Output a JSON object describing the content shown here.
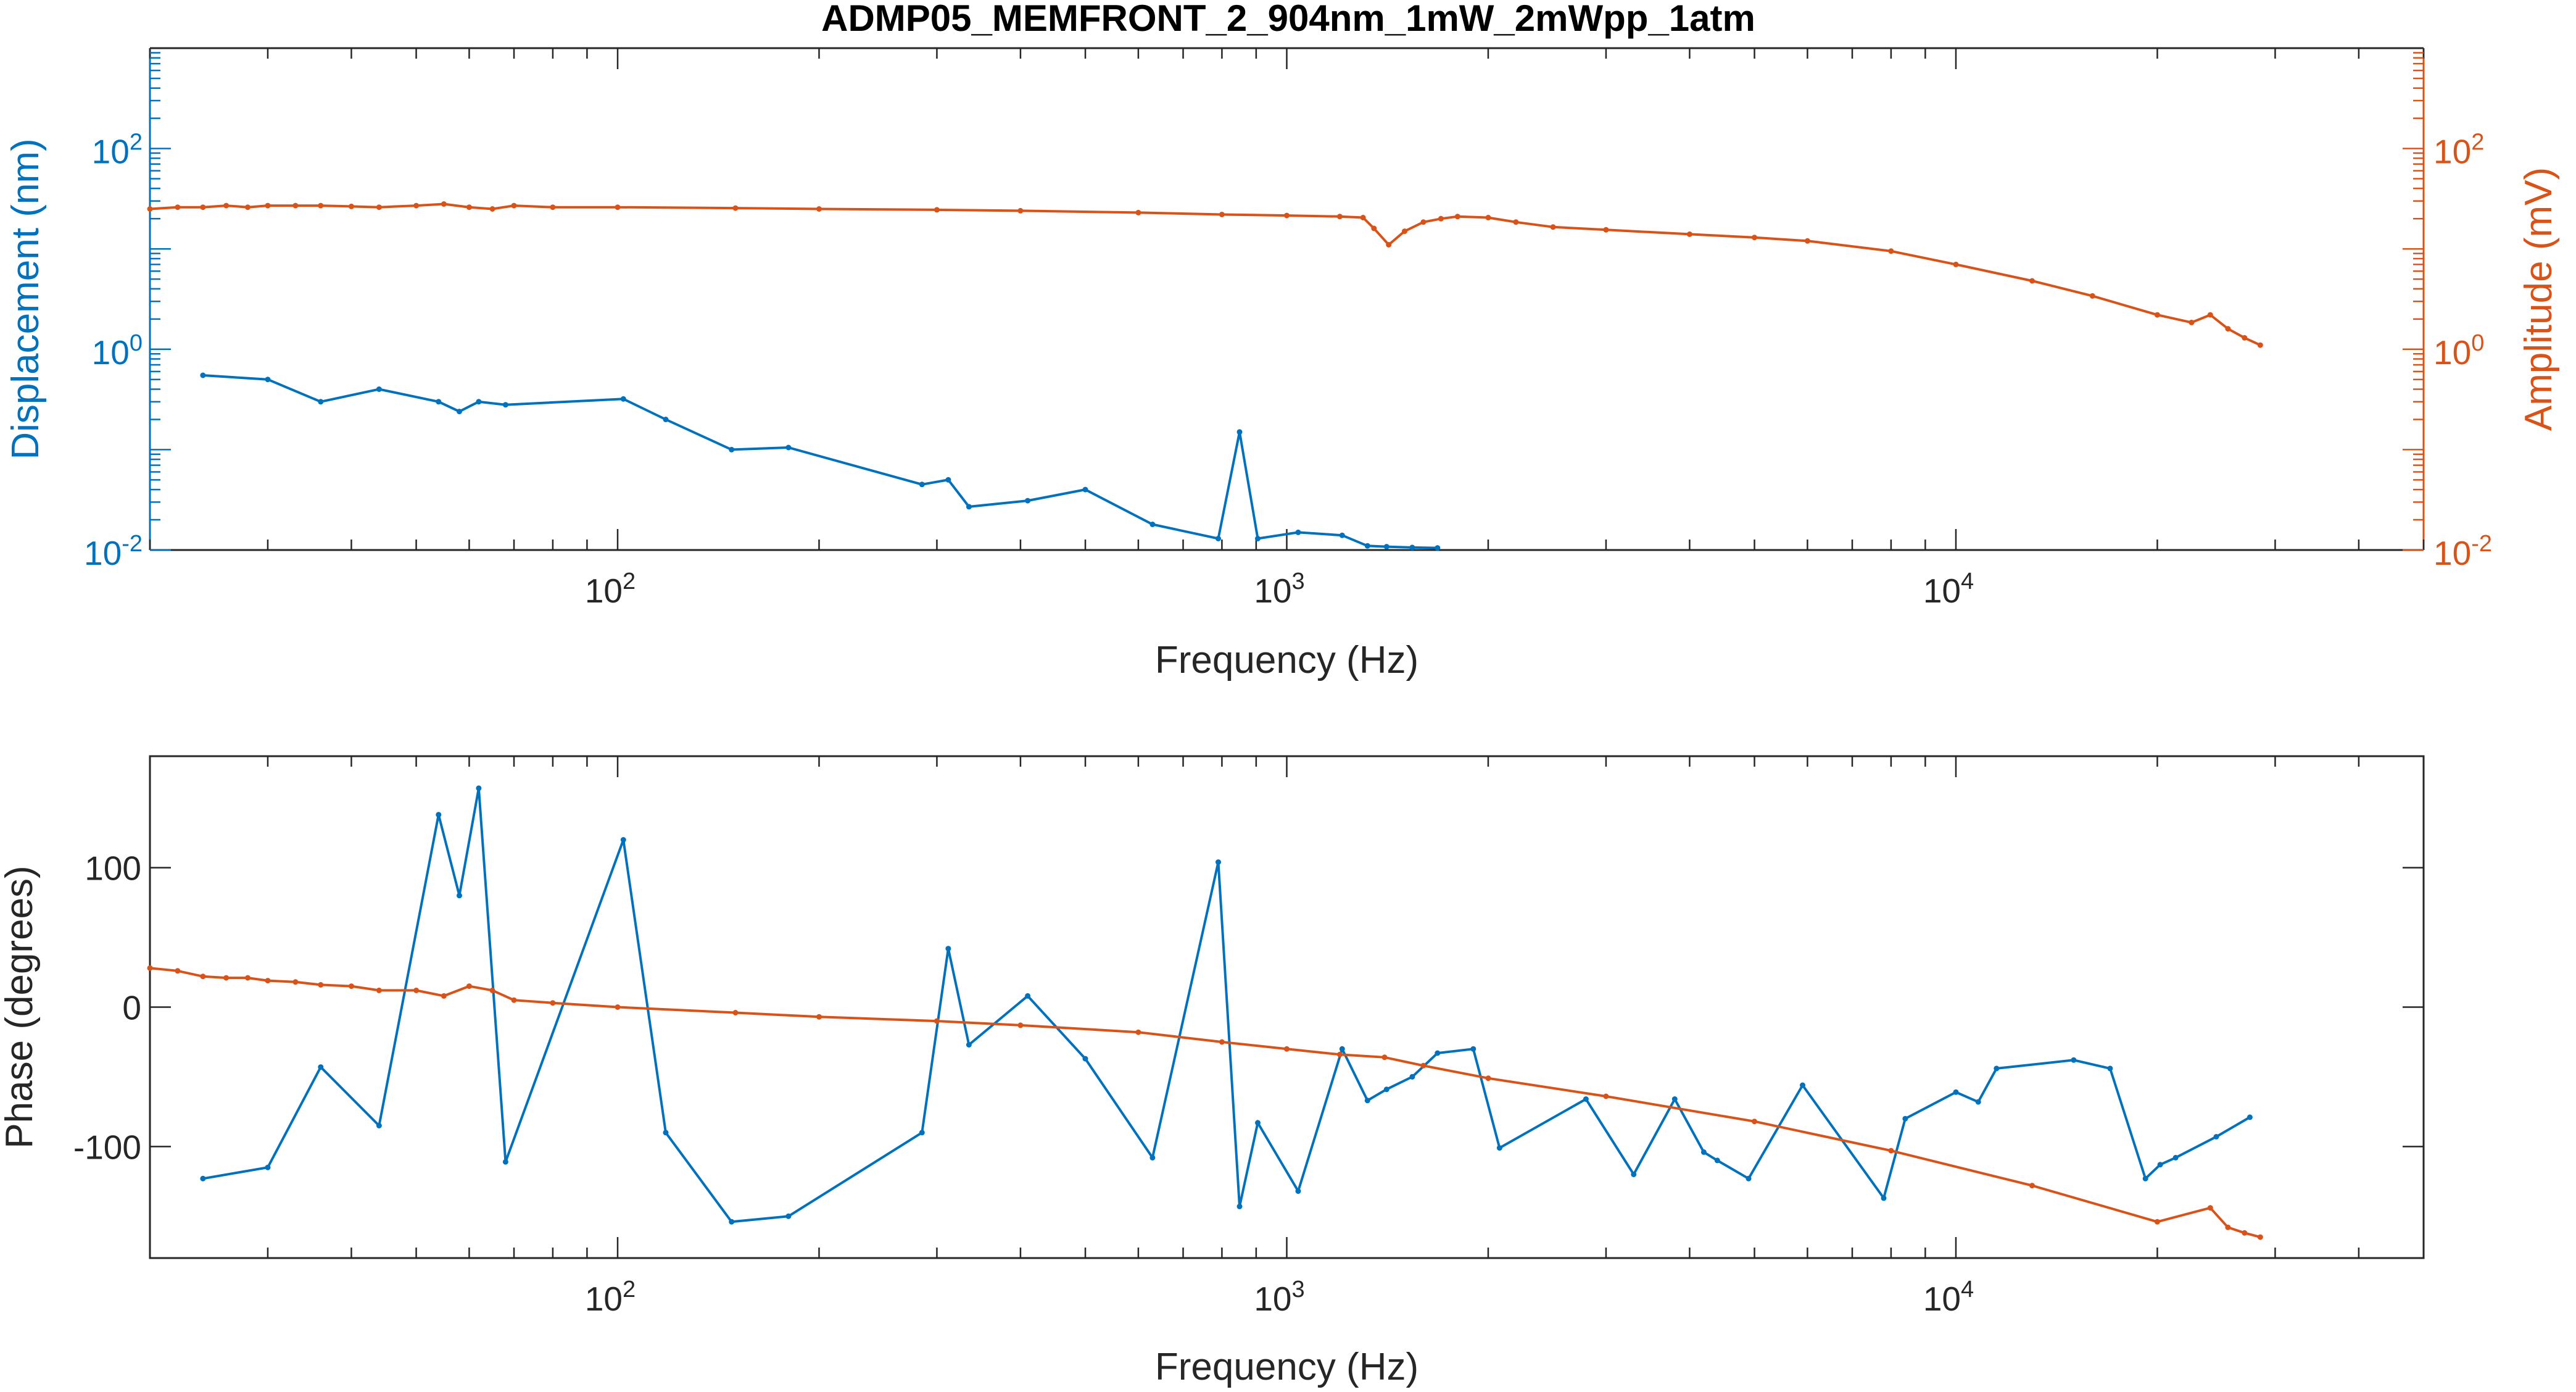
{
  "title": "ADMP05_MEMFRONT_2_904nm_1mW_2mWpp_1atm",
  "colors": {
    "blue": "#0072BD",
    "orange": "#D95319",
    "axis": "#262626",
    "grid": "#262626"
  },
  "chart_data": [
    {
      "type": "line",
      "title": "ADMP05_MEMFRONT_2_904nm_1mW_2mWpp_1atm",
      "xlabel": "Frequency (Hz)",
      "xscale": "log",
      "xlim": [
        20,
        50000
      ],
      "xticks": [
        {
          "base": "10",
          "exp": "2"
        },
        {
          "base": "10",
          "exp": "3"
        },
        {
          "base": "10",
          "exp": "4"
        }
      ],
      "y_left": {
        "label": "Displacement (nm)",
        "scale": "log",
        "lim": [
          0.01,
          1000
        ],
        "ticks": [
          {
            "base": "10",
            "exp": "-2"
          },
          {
            "base": "10",
            "exp": "0"
          },
          {
            "base": "10",
            "exp": "2"
          }
        ]
      },
      "y_right": {
        "label": "Amplitude (mV)",
        "scale": "log",
        "lim": [
          0.01,
          1000
        ],
        "ticks": [
          {
            "base": "10",
            "exp": "-2"
          },
          {
            "base": "10",
            "exp": "0"
          },
          {
            "base": "10",
            "exp": "2"
          }
        ]
      },
      "grid": false,
      "series": [
        {
          "axis": "left",
          "color": "#0072BD",
          "x": [
            24,
            30,
            36,
            44,
            54,
            58,
            62,
            68,
            102,
            118,
            148,
            180,
            285,
            312,
            335,
            410,
            500,
            630,
            790,
            850,
            905,
            1040,
            1210,
            1320,
            1410,
            1540,
            1680
          ],
          "y": [
            0.55,
            0.5,
            0.3,
            0.4,
            0.3,
            0.24,
            0.3,
            0.28,
            0.32,
            0.2,
            0.1,
            0.105,
            0.045,
            0.05,
            0.027,
            0.031,
            0.04,
            0.018,
            0.013,
            0.15,
            0.013,
            0.015,
            0.014,
            0.011,
            0.0108,
            0.0106,
            0.0105
          ]
        },
        {
          "axis": "right",
          "color": "#D95319",
          "x": [
            20,
            22,
            24,
            26,
            28,
            30,
            33,
            36,
            40,
            44,
            50,
            55,
            60,
            65,
            70,
            80,
            100,
            150,
            200,
            300,
            400,
            600,
            800,
            1000,
            1200,
            1300,
            1350,
            1420,
            1500,
            1600,
            1700,
            1800,
            2000,
            2200,
            2500,
            3000,
            4000,
            5000,
            6000,
            8000,
            10000,
            13000,
            16000,
            20000,
            22500,
            24000,
            25500,
            27000,
            28500
          ],
          "y": [
            25,
            26,
            26,
            27,
            26,
            27,
            27,
            27,
            26.5,
            26,
            27,
            28,
            26,
            25,
            27,
            26,
            26,
            25.5,
            25,
            24.5,
            24,
            23,
            22,
            21.5,
            21,
            20.5,
            16,
            11,
            15,
            18.5,
            20,
            21,
            20.5,
            18.5,
            16.5,
            15.5,
            14,
            13,
            12,
            9.5,
            7,
            4.8,
            3.4,
            2.2,
            1.85,
            2.2,
            1.6,
            1.3,
            1.1
          ]
        }
      ]
    },
    {
      "type": "line",
      "xlabel": "Frequency (Hz)",
      "ylabel": "Phase (degrees)",
      "xscale": "log",
      "xlim": [
        20,
        50000
      ],
      "ylim": [
        -180,
        180
      ],
      "xticks": [
        {
          "base": "10",
          "exp": "2"
        },
        {
          "base": "10",
          "exp": "3"
        },
        {
          "base": "10",
          "exp": "4"
        }
      ],
      "yticks": [
        "100",
        "0",
        "-100"
      ],
      "grid": false,
      "series": [
        {
          "color": "#0072BD",
          "x": [
            24,
            30,
            36,
            44,
            54,
            58,
            62,
            68,
            102,
            118,
            148,
            180,
            285,
            312,
            335,
            410,
            500,
            630,
            790,
            850,
            905,
            1040,
            1210,
            1320,
            1410,
            1540,
            1680,
            1900,
            2080,
            2800,
            3300,
            3800,
            4200,
            4400,
            4900,
            5900,
            7800,
            8400,
            10000,
            10800,
            11500,
            15000,
            17000,
            19200,
            20200,
            21300,
            24500,
            27500
          ],
          "y": [
            -123,
            -115,
            -43,
            -85,
            138,
            80,
            157,
            -111,
            120,
            -90,
            -154,
            -150,
            -90,
            42,
            -27,
            8,
            -37,
            -108,
            104,
            -143,
            -83,
            -132,
            -30,
            -67,
            -59,
            -50,
            -33,
            -30,
            -101,
            -66,
            -120,
            -66,
            -104,
            -110,
            -123,
            -56,
            -137,
            -80,
            -61,
            -68,
            -44,
            -38,
            -44,
            -123,
            -113,
            -108,
            -93,
            -79
          ]
        },
        {
          "color": "#D95319",
          "x": [
            20,
            22,
            24,
            26,
            28,
            30,
            33,
            36,
            40,
            44,
            50,
            55,
            60,
            65,
            70,
            80,
            100,
            150,
            200,
            300,
            400,
            600,
            800,
            1000,
            1200,
            1400,
            1600,
            2000,
            3000,
            5000,
            8000,
            13000,
            20000,
            24000,
            25500,
            27000,
            28500
          ],
          "y": [
            28,
            26,
            22,
            21,
            21,
            19,
            18,
            16,
            15,
            12,
            12,
            8,
            15,
            12,
            5,
            3,
            0,
            -4,
            -7,
            -10,
            -13,
            -18,
            -25,
            -30,
            -34,
            -36,
            -42,
            -51,
            -64,
            -82,
            -103,
            -128,
            -154,
            -144,
            -158,
            -162,
            -165
          ]
        }
      ]
    }
  ]
}
